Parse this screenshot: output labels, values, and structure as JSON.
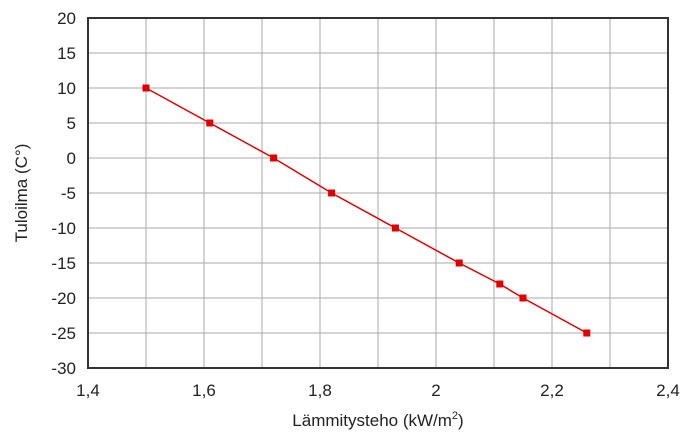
{
  "chart_data": {
    "type": "line",
    "title": "",
    "xlabel": "Lämmitysteho (kW/m",
    "xlabel_sup": "2",
    "xlabel_close": ")",
    "ylabel": "Tuloilma (C°)",
    "xlim": [
      1.4,
      2.4
    ],
    "ylim": [
      -30,
      20
    ],
    "x_ticks": [
      1.4,
      1.5,
      1.6,
      1.7,
      1.8,
      1.9,
      2.0,
      2.1,
      2.2,
      2.3,
      2.4
    ],
    "x_tick_labels": [
      "1,4",
      "",
      "1,6",
      "",
      "1,8",
      "",
      "2",
      "",
      "2,2",
      "",
      "2,4"
    ],
    "y_ticks": [
      20,
      15,
      10,
      5,
      0,
      -5,
      -10,
      -15,
      -20,
      -25,
      -30
    ],
    "y_tick_labels": [
      "20",
      "15",
      "10",
      "5",
      "0",
      "-5",
      "-10",
      "-15",
      "-20",
      "-25",
      "-30"
    ],
    "grid": true,
    "legend": "none",
    "series": [
      {
        "color": "#e00000",
        "marker": "square",
        "x": [
          1.5,
          1.61,
          1.72,
          1.82,
          1.93,
          2.04,
          2.11,
          2.15,
          2.26
        ],
        "y": [
          10,
          5,
          0,
          -5,
          -10,
          -15,
          -18,
          -20,
          -25
        ]
      }
    ],
    "colors": {
      "grid": "#aaaaaa",
      "frame": "#333333",
      "text": "#222222"
    }
  }
}
